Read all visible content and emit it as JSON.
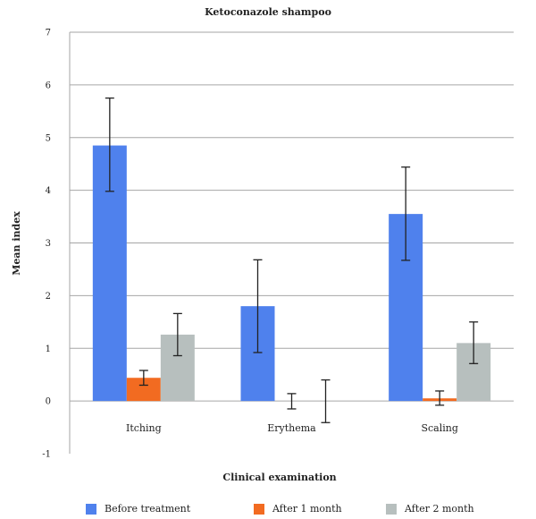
{
  "chart_data": {
    "type": "bar",
    "title": "Ketoconazole shampoo",
    "xlabel": "Clinical examination",
    "ylabel": "Mean index",
    "ylim": [
      -1,
      7
    ],
    "yticks": [
      -1,
      0,
      1,
      2,
      3,
      4,
      5,
      6,
      7
    ],
    "grid": true,
    "legend_position": "bottom",
    "categories": [
      "Itching",
      "Erythema",
      "Scaling"
    ],
    "series": [
      {
        "name": "Before treatment",
        "color": "#4f81ed",
        "values": [
          4.85,
          1.8,
          3.55
        ],
        "error": [
          [
            3.98,
            5.75
          ],
          [
            0.92,
            2.68
          ],
          [
            2.67,
            4.44
          ]
        ]
      },
      {
        "name": "After 1 month",
        "color": "#f26b21",
        "values": [
          0.44,
          0.0,
          0.05
        ],
        "error": [
          [
            0.3,
            0.58
          ],
          [
            -0.15,
            0.14
          ],
          [
            -0.08,
            0.19
          ]
        ]
      },
      {
        "name": "After 2 month",
        "color": "#b7bfbe",
        "values": [
          1.26,
          0.0,
          1.1
        ],
        "error": [
          [
            0.86,
            1.66
          ],
          [
            -0.41,
            0.4
          ],
          [
            0.71,
            1.5
          ]
        ]
      }
    ]
  }
}
